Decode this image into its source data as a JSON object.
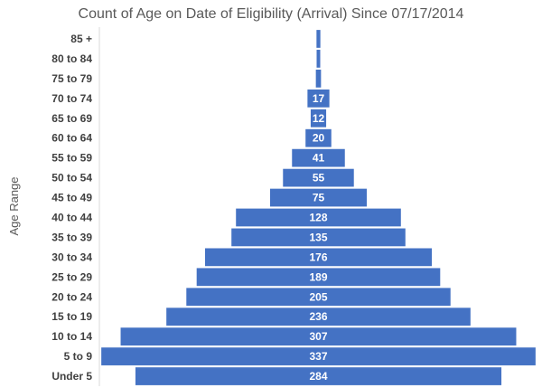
{
  "chart_data": {
    "type": "bar",
    "orientation": "horizontal-centered",
    "title": "Count of Age on Date of Eligibility (Arrival) Since 07/17/2014",
    "ylabel": "Age Range",
    "xlabel": "",
    "color": "#4472C4",
    "categories": [
      "85 +",
      "80 to 84",
      "75 to 79",
      "70 to 74",
      "65 to 69",
      "60 to 64",
      "55 to 59",
      "50 to 54",
      "45 to 49",
      "40 to 44",
      "35 to 39",
      "30 to 34",
      "25 to 29",
      "20 to 24",
      "15 to 19",
      "10 to 14",
      "5 to 9",
      "Under 5"
    ],
    "values": [
      3,
      2,
      4,
      17,
      12,
      20,
      41,
      55,
      75,
      128,
      135,
      176,
      189,
      205,
      236,
      307,
      337,
      284
    ],
    "data_labels": [
      "",
      "",
      "",
      "17",
      "12",
      "20",
      "41",
      "55",
      "75",
      "128",
      "135",
      "176",
      "189",
      "205",
      "236",
      "307",
      "337",
      "284"
    ],
    "xlim": [
      0,
      340
    ],
    "grid": false,
    "legend": "none"
  }
}
